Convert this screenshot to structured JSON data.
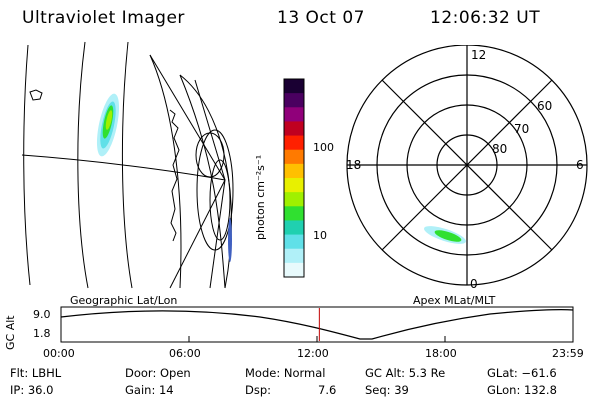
{
  "header": {
    "title": "Ultraviolet Imager",
    "date": "13 Oct 07",
    "time": "12:06:32 UT"
  },
  "panels": {
    "left_label": "Geographic Lat/Lon",
    "right_label": "Apex MLat/MLT"
  },
  "colorbar": {
    "unit_label": "photon cm⁻²s⁻¹",
    "ticks": [
      "100",
      "10"
    ],
    "colors": [
      "#1a0033",
      "#4a0060",
      "#90007a",
      "#c00020",
      "#ff2000",
      "#ff7a00",
      "#ffc000",
      "#e8f000",
      "#a0f000",
      "#30e030",
      "#20d0b0",
      "#60e0e8",
      "#b0f0f8",
      "#e8fafc"
    ]
  },
  "polar": {
    "mlt_labels": {
      "top": "12",
      "right": "6",
      "bottom": "0",
      "left": "18"
    },
    "lat_labels": [
      "60",
      "70",
      "80"
    ]
  },
  "altitude_plot": {
    "ylabel": "GC Alt",
    "yticks": [
      "9.0",
      "1.8"
    ],
    "xticks": [
      "00:00",
      "06:00",
      "12:00",
      "18:00",
      "23:59"
    ],
    "current_time_hours": 12.11
  },
  "info": {
    "flt": "Flt: LBHL",
    "ip": "IP: 36.0",
    "door": "Door: Open",
    "gain": "Gain: 14",
    "mode": "Mode: Normal",
    "dsp_label": "Dsp:",
    "dsp_value": "7.6",
    "gc_alt": "GC Alt: 5.3 Re",
    "seq": "Seq: 39",
    "glat": "GLat: −61.6",
    "glon": "GLon: 132.8"
  }
}
